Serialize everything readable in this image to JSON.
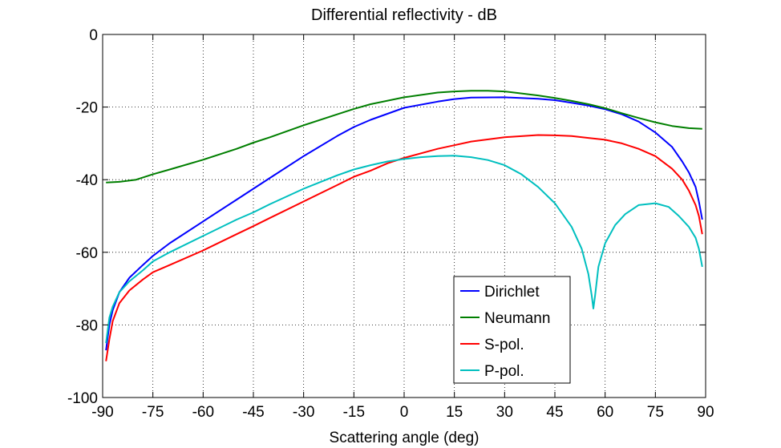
{
  "chart_data": {
    "type": "line",
    "title": "Differential reflectivity - dB",
    "xlabel": "Scattering angle (deg)",
    "ylabel": "",
    "xlim": [
      -90,
      90
    ],
    "ylim": [
      -100,
      0
    ],
    "xticks": [
      -90,
      -75,
      -60,
      -45,
      -30,
      -15,
      0,
      15,
      30,
      45,
      60,
      75,
      90
    ],
    "yticks": [
      0,
      -20,
      -40,
      -60,
      -80,
      -100
    ],
    "grid": true,
    "legend_position": "bottom-right",
    "series": [
      {
        "name": "Dirichlet",
        "color": "#0000ff",
        "points": [
          [
            -89,
            -87
          ],
          [
            -88,
            -80
          ],
          [
            -87,
            -76
          ],
          [
            -85,
            -71
          ],
          [
            -82,
            -67
          ],
          [
            -78,
            -63.5
          ],
          [
            -75,
            -61
          ],
          [
            -70,
            -57.5
          ],
          [
            -60,
            -51.5
          ],
          [
            -50,
            -45.5
          ],
          [
            -45,
            -42.5
          ],
          [
            -40,
            -39.5
          ],
          [
            -30,
            -33.5
          ],
          [
            -20,
            -28
          ],
          [
            -15,
            -25.5
          ],
          [
            -10,
            -23.5
          ],
          [
            0,
            -20.2
          ],
          [
            10,
            -18.5
          ],
          [
            15,
            -17.8
          ],
          [
            20,
            -17.4
          ],
          [
            30,
            -17.3
          ],
          [
            40,
            -17.7
          ],
          [
            45,
            -18.1
          ],
          [
            50,
            -18.8
          ],
          [
            55,
            -19.6
          ],
          [
            60,
            -20.6
          ],
          [
            65,
            -22
          ],
          [
            70,
            -24
          ],
          [
            75,
            -27
          ],
          [
            80,
            -31
          ],
          [
            83,
            -35
          ],
          [
            85,
            -38
          ],
          [
            87,
            -42
          ],
          [
            88,
            -46
          ],
          [
            89,
            -51
          ]
        ]
      },
      {
        "name": "Neumann",
        "color": "#007f00",
        "points": [
          [
            -89,
            -40.8
          ],
          [
            -85,
            -40.6
          ],
          [
            -80,
            -40
          ],
          [
            -75,
            -38.5
          ],
          [
            -70,
            -37.2
          ],
          [
            -60,
            -34.5
          ],
          [
            -50,
            -31.5
          ],
          [
            -45,
            -29.8
          ],
          [
            -40,
            -28.3
          ],
          [
            -30,
            -25
          ],
          [
            -20,
            -22
          ],
          [
            -15,
            -20.5
          ],
          [
            -10,
            -19.2
          ],
          [
            0,
            -17.3
          ],
          [
            10,
            -16
          ],
          [
            15,
            -15.7
          ],
          [
            20,
            -15.5
          ],
          [
            25,
            -15.5
          ],
          [
            30,
            -15.7
          ],
          [
            40,
            -16.8
          ],
          [
            45,
            -17.5
          ],
          [
            50,
            -18.3
          ],
          [
            55,
            -19.2
          ],
          [
            60,
            -20.3
          ],
          [
            65,
            -21.7
          ],
          [
            70,
            -23
          ],
          [
            75,
            -24.2
          ],
          [
            80,
            -25.2
          ],
          [
            85,
            -25.8
          ],
          [
            89,
            -26
          ]
        ]
      },
      {
        "name": "S-pol.",
        "color": "#ff0000",
        "points": [
          [
            -89,
            -90
          ],
          [
            -88,
            -84
          ],
          [
            -87,
            -79
          ],
          [
            -85,
            -74
          ],
          [
            -82,
            -70.5
          ],
          [
            -78,
            -67.5
          ],
          [
            -75,
            -65.5
          ],
          [
            -70,
            -63.5
          ],
          [
            -60,
            -59.5
          ],
          [
            -50,
            -55
          ],
          [
            -45,
            -52.8
          ],
          [
            -40,
            -50.5
          ],
          [
            -30,
            -46
          ],
          [
            -20,
            -41.5
          ],
          [
            -15,
            -39.2
          ],
          [
            -10,
            -37.5
          ],
          [
            -5,
            -35.5
          ],
          [
            0,
            -34
          ],
          [
            10,
            -31.5
          ],
          [
            15,
            -30.5
          ],
          [
            20,
            -29.5
          ],
          [
            30,
            -28.3
          ],
          [
            40,
            -27.7
          ],
          [
            45,
            -27.8
          ],
          [
            50,
            -28
          ],
          [
            55,
            -28.5
          ],
          [
            60,
            -29
          ],
          [
            65,
            -30
          ],
          [
            70,
            -31.5
          ],
          [
            75,
            -33.5
          ],
          [
            80,
            -37
          ],
          [
            83,
            -40
          ],
          [
            85,
            -43
          ],
          [
            87,
            -47
          ],
          [
            88,
            -50
          ],
          [
            89,
            -55
          ]
        ]
      },
      {
        "name": "P-pol.",
        "color": "#00bfbf",
        "points": [
          [
            -89,
            -85
          ],
          [
            -88,
            -78
          ],
          [
            -87,
            -75
          ],
          [
            -85,
            -71
          ],
          [
            -82,
            -68
          ],
          [
            -78,
            -65
          ],
          [
            -75,
            -62.5
          ],
          [
            -70,
            -60
          ],
          [
            -60,
            -55.5
          ],
          [
            -50,
            -51
          ],
          [
            -45,
            -49
          ],
          [
            -40,
            -46.7
          ],
          [
            -30,
            -42.5
          ],
          [
            -20,
            -38.8
          ],
          [
            -15,
            -37.2
          ],
          [
            -10,
            -36
          ],
          [
            -5,
            -35
          ],
          [
            0,
            -34.3
          ],
          [
            5,
            -33.8
          ],
          [
            10,
            -33.5
          ],
          [
            15,
            -33.4
          ],
          [
            20,
            -33.8
          ],
          [
            25,
            -34.6
          ],
          [
            30,
            -36
          ],
          [
            35,
            -38.5
          ],
          [
            40,
            -42
          ],
          [
            45,
            -46.5
          ],
          [
            50,
            -53
          ],
          [
            53,
            -59
          ],
          [
            55,
            -66
          ],
          [
            56,
            -72
          ],
          [
            56.5,
            -75.5
          ],
          [
            57,
            -72
          ],
          [
            58,
            -64
          ],
          [
            60,
            -57.5
          ],
          [
            63,
            -52.5
          ],
          [
            66,
            -49.5
          ],
          [
            70,
            -47
          ],
          [
            75,
            -46.5
          ],
          [
            79,
            -47.5
          ],
          [
            82,
            -50
          ],
          [
            85,
            -53
          ],
          [
            87,
            -56
          ],
          [
            88,
            -59
          ],
          [
            89,
            -64
          ]
        ]
      }
    ]
  }
}
